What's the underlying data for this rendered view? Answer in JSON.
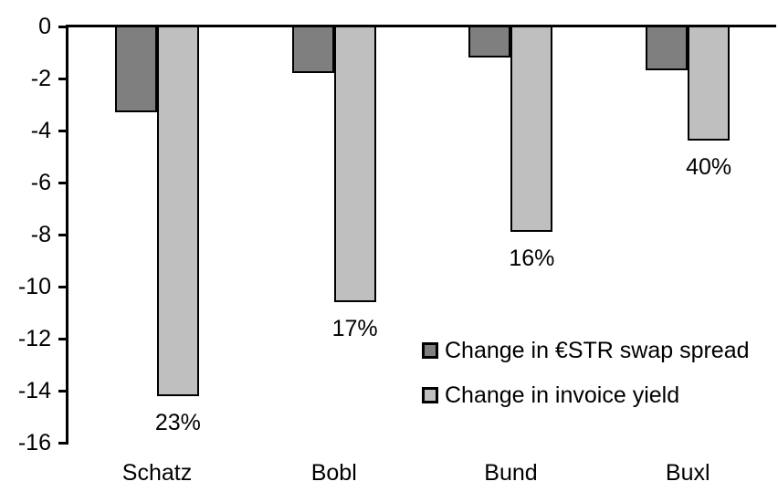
{
  "chart_data": {
    "type": "bar",
    "orientation": "vertical",
    "title": "",
    "xlabel": "",
    "ylabel": "",
    "categories": [
      "Schatz",
      "Bobl",
      "Bund",
      "Buxl"
    ],
    "series": [
      {
        "name": "Change in €STR swap spread",
        "color": "#7f7f7f",
        "values": [
          -3.3,
          -1.8,
          -1.2,
          -1.7
        ]
      },
      {
        "name": "Change in invoice yield",
        "color": "#bfbfbf",
        "values": [
          -14.2,
          -10.6,
          -7.9,
          -4.4
        ],
        "data_labels": [
          "23%",
          "17%",
          "16%",
          "40%"
        ]
      }
    ],
    "ylim": [
      -16,
      0
    ],
    "yticks": [
      0,
      -2,
      -4,
      -6,
      -8,
      -10,
      -12,
      -14,
      -16
    ],
    "grid": false,
    "legend_position": "inside-right",
    "axis_color": "#000000",
    "bar_border_color": "#000000",
    "background_color": "#ffffff"
  }
}
